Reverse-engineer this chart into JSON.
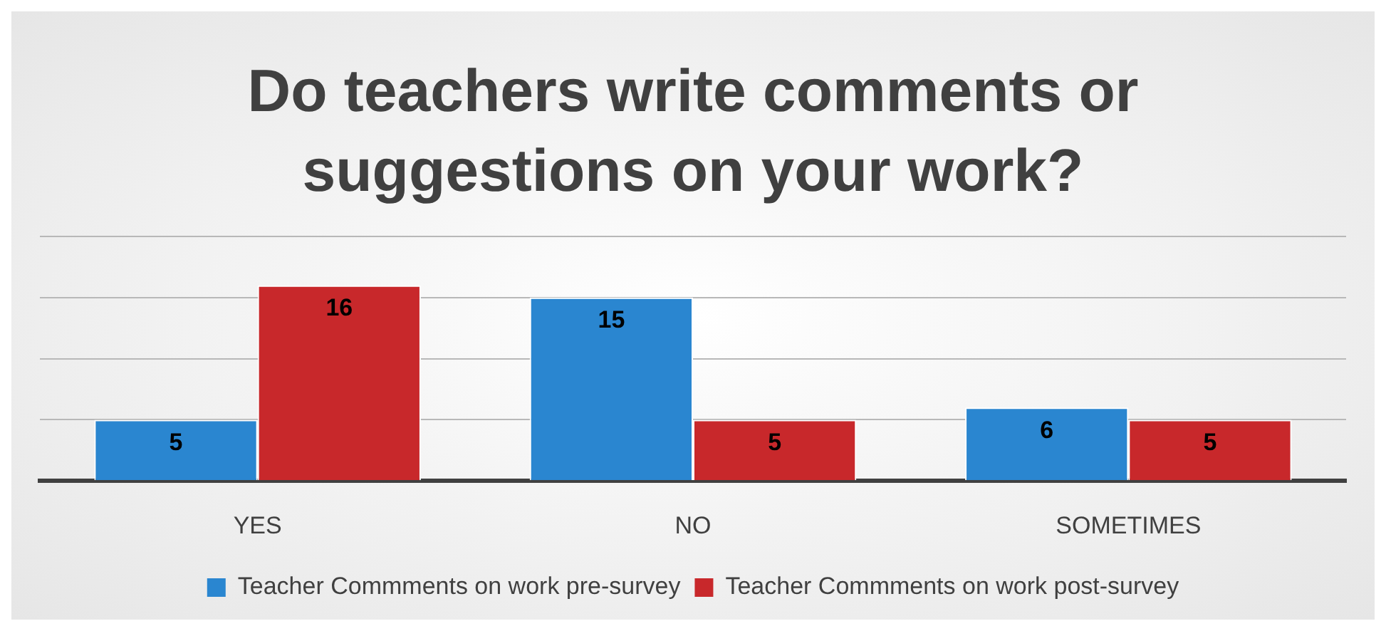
{
  "chart_data": {
    "type": "bar",
    "title": "Do teachers write comments or suggestions on your work?",
    "categories": [
      "YES",
      "NO",
      "SOMETIMES"
    ],
    "series": [
      {
        "name": "Teacher Commments on work pre-survey",
        "color": "#2a86d0",
        "values": [
          5,
          15,
          6
        ]
      },
      {
        "name": "Teacher Commments on work post-survey",
        "color": "#c8282b",
        "values": [
          16,
          5,
          5
        ]
      }
    ],
    "ylim": [
      0,
      20
    ],
    "yticks": [
      {
        "value": 0,
        "label": null
      },
      {
        "value": 5,
        "label": null
      },
      {
        "value": 10,
        "label": null
      },
      {
        "value": 15,
        "label": null
      },
      {
        "value": 20,
        "label": null
      }
    ],
    "tick_labels": "x",
    "grid": "y",
    "legend": "bottom",
    "data_labels": true
  }
}
